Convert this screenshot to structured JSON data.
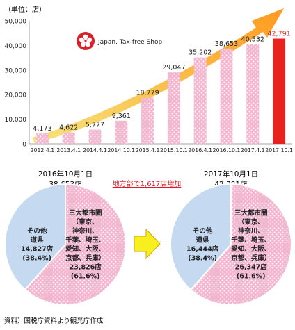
{
  "colors": {
    "bar_fill": "#f3b8d0",
    "bar_dot": "#ffffff",
    "bar_highlight": "#e8231e",
    "value_highlight": "#e8231e",
    "arrow_start": "#f6e37a",
    "arrow_end": "#ff9a1f",
    "other_slice": "#c5d9f0",
    "metro_slice": "#f3b8d0",
    "center_arrow": "#f7ef1f",
    "note_text": "#d8202a"
  },
  "logo": {
    "text": "Japan. Tax-free Shop",
    "icon": "cherry-blossom-icon"
  },
  "chart_data": [
    {
      "type": "bar",
      "unit_label": "（単位：店）",
      "categories": [
        "2012.4.1",
        "2013.4.1",
        "2014.4.1",
        "2014.10.1",
        "2015.4.1",
        "2015.10.1",
        "2016.4.1",
        "2016.10.1",
        "2017.4.1",
        "2017.10.1"
      ],
      "values": [
        4173,
        4622,
        5777,
        9361,
        18779,
        29047,
        35202,
        38653,
        40532,
        42791
      ],
      "value_labels": [
        "4,173",
        "4,622",
        "5,777",
        "9,361",
        "18,779",
        "29,047",
        "35,202",
        "38,653",
        "40,532",
        "42,791"
      ],
      "highlight_index": 9,
      "ylim": [
        0,
        50000
      ],
      "yticks": [
        0,
        10000,
        20000,
        30000,
        40000,
        50000
      ],
      "ytick_labels": [
        "0",
        "10,000",
        "20,000",
        "30,000",
        "40,000",
        "50,000"
      ],
      "grid": false
    },
    {
      "type": "pie",
      "title_date": "2016年10月1日",
      "title_total": "38,653店",
      "slices": [
        {
          "name": "その他道県",
          "value": 14827,
          "lines": [
            "その他",
            "道県",
            "14,827店",
            "(38.4%)"
          ],
          "percent": 38.4
        },
        {
          "name": "三大都市圏",
          "value": 23826,
          "lines": [
            "三大都市圏",
            "（東京、",
            "神奈川、",
            "千葉、埼玉、",
            "愛知、大阪、",
            "京都、兵庫）",
            "23,826店",
            "(61.6%)"
          ],
          "percent": 61.6
        }
      ]
    },
    {
      "type": "pie",
      "title_date": "2017年10月1日",
      "title_total": "42,791店",
      "slices": [
        {
          "name": "その他道県",
          "value": 16444,
          "lines": [
            "その他",
            "道県",
            "16,444店",
            "(38.4%)"
          ],
          "percent": 38.4
        },
        {
          "name": "三大都市圏",
          "value": 26347,
          "lines": [
            "三大都市圏",
            "（東京、",
            "神奈川、",
            "千葉、埼玉、",
            "愛知、大阪、",
            "京都、兵庫）",
            "26,347店",
            "(61.6%)"
          ],
          "percent": 61.6
        }
      ]
    }
  ],
  "annotation": "地方部で1,617店増加",
  "source": "資料）国税庁資料より観光庁作成"
}
